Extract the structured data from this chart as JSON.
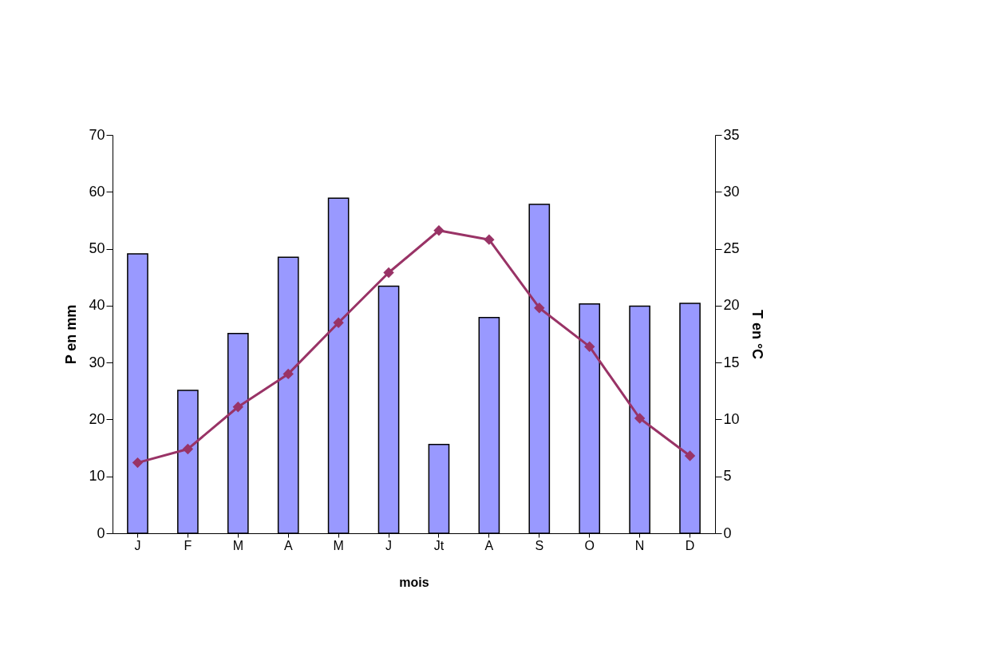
{
  "chart_data": {
    "type": "bar",
    "xlabel": "mois",
    "ylabel": "P en mm",
    "y2label": "T en °C",
    "categories": [
      "J",
      "F",
      "M",
      "A",
      "M",
      "J",
      "Jt",
      "A",
      "S",
      "O",
      "N",
      "D"
    ],
    "series": [
      {
        "color": "#9999ff",
        "values": [
          49.1,
          25.1,
          35.1,
          48.5,
          58.9,
          43.4,
          15.6,
          37.9,
          57.8,
          40.3,
          39.9,
          40.4
        ]
      },
      {
        "type": "line",
        "axis": "y2",
        "color": "#993366",
        "marker": "diamond",
        "values": [
          6.2,
          7.4,
          11.1,
          14.0,
          18.5,
          22.9,
          26.6,
          25.8,
          19.8,
          16.4,
          10.1,
          6.8
        ]
      }
    ],
    "ylim": [
      0,
      70
    ],
    "yticks": [
      0,
      10,
      20,
      30,
      40,
      50,
      60,
      70
    ],
    "y2lim": [
      0,
      35
    ],
    "y2ticks": [
      0,
      5,
      10,
      15,
      20,
      25,
      30,
      35
    ],
    "grid": false
  }
}
